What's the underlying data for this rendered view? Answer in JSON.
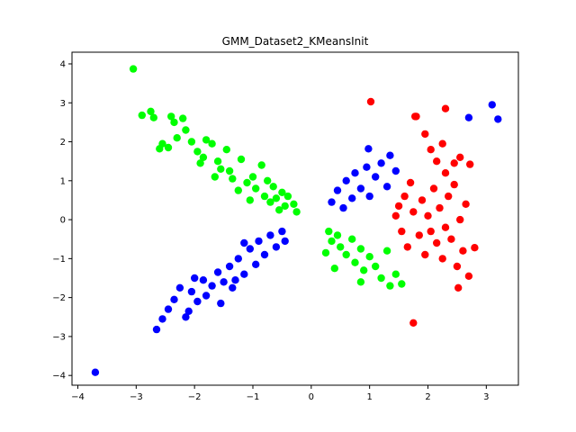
{
  "chart_data": {
    "type": "scatter",
    "title": "GMM_Dataset2_KMeansInit",
    "xlabel": "",
    "ylabel": "",
    "xlim": [
      -4.1,
      3.55
    ],
    "ylim": [
      -4.25,
      4.3
    ],
    "xticks": [
      -4,
      -3,
      -2,
      -1,
      0,
      1,
      2,
      3
    ],
    "yticks": [
      -4,
      -3,
      -2,
      -1,
      0,
      1,
      2,
      3,
      4
    ],
    "grid": false,
    "legend": "none",
    "colors": {
      "cluster_a": "#00ff00",
      "cluster_b": "#0000ff",
      "cluster_c": "#ff0000"
    },
    "series": [
      {
        "color_key": "cluster_a",
        "points": [
          [
            -3.05,
            3.87
          ],
          [
            -2.9,
            2.68
          ],
          [
            -2.75,
            2.78
          ],
          [
            -2.7,
            2.62
          ],
          [
            -2.55,
            1.95
          ],
          [
            -2.6,
            1.82
          ],
          [
            -2.4,
            2.65
          ],
          [
            -2.35,
            2.5
          ],
          [
            -2.3,
            2.1
          ],
          [
            -2.2,
            2.6
          ],
          [
            -2.15,
            2.3
          ],
          [
            -2.05,
            2.0
          ],
          [
            -1.95,
            1.75
          ],
          [
            -1.85,
            1.6
          ],
          [
            -1.8,
            2.05
          ],
          [
            -1.7,
            1.95
          ],
          [
            -1.6,
            1.5
          ],
          [
            -1.55,
            1.3
          ],
          [
            -1.45,
            1.8
          ],
          [
            -1.4,
            1.25
          ],
          [
            -1.35,
            1.05
          ],
          [
            -1.2,
            1.55
          ],
          [
            -1.1,
            0.95
          ],
          [
            -1.0,
            1.1
          ],
          [
            -0.95,
            0.8
          ],
          [
            -0.85,
            1.4
          ],
          [
            -0.8,
            0.6
          ],
          [
            -0.75,
            1.0
          ],
          [
            -0.7,
            0.45
          ],
          [
            -0.65,
            0.85
          ],
          [
            -0.6,
            0.55
          ],
          [
            -0.5,
            0.7
          ],
          [
            -0.45,
            0.35
          ],
          [
            -0.4,
            0.6
          ],
          [
            -0.3,
            0.4
          ],
          [
            -0.25,
            0.2
          ],
          [
            0.3,
            -0.3
          ],
          [
            0.35,
            -0.55
          ],
          [
            0.45,
            -0.4
          ],
          [
            0.5,
            -0.7
          ],
          [
            0.6,
            -0.9
          ],
          [
            0.7,
            -0.5
          ],
          [
            0.75,
            -1.1
          ],
          [
            0.85,
            -0.75
          ],
          [
            0.9,
            -1.3
          ],
          [
            1.0,
            -0.95
          ],
          [
            1.1,
            -1.2
          ],
          [
            1.2,
            -1.5
          ],
          [
            1.3,
            -0.8
          ],
          [
            1.35,
            -1.7
          ],
          [
            1.45,
            -1.4
          ],
          [
            1.55,
            -1.65
          ],
          [
            0.25,
            -0.85
          ],
          [
            0.4,
            -1.25
          ],
          [
            0.85,
            -1.6
          ],
          [
            -1.9,
            1.45
          ],
          [
            -1.25,
            0.75
          ],
          [
            -2.45,
            1.85
          ],
          [
            -1.65,
            1.1
          ],
          [
            -1.05,
            0.5
          ],
          [
            -0.55,
            0.25
          ]
        ]
      },
      {
        "color_key": "cluster_b",
        "points": [
          [
            -3.7,
            -3.92
          ],
          [
            -2.65,
            -2.82
          ],
          [
            -2.55,
            -2.55
          ],
          [
            -2.45,
            -2.3
          ],
          [
            -2.35,
            -2.05
          ],
          [
            -2.25,
            -1.75
          ],
          [
            -2.15,
            -2.5
          ],
          [
            -2.1,
            -2.35
          ],
          [
            -2.05,
            -1.85
          ],
          [
            -1.95,
            -2.1
          ],
          [
            -1.85,
            -1.55
          ],
          [
            -1.8,
            -1.95
          ],
          [
            -1.7,
            -1.7
          ],
          [
            -1.6,
            -1.35
          ],
          [
            -1.55,
            -2.15
          ],
          [
            -1.5,
            -1.6
          ],
          [
            -1.4,
            -1.2
          ],
          [
            -1.35,
            -1.75
          ],
          [
            -1.25,
            -1.0
          ],
          [
            -1.15,
            -1.4
          ],
          [
            -1.05,
            -0.75
          ],
          [
            -0.95,
            -1.15
          ],
          [
            -0.9,
            -0.55
          ],
          [
            -0.8,
            -0.9
          ],
          [
            -0.7,
            -0.4
          ],
          [
            -0.6,
            -0.7
          ],
          [
            -0.5,
            -0.3
          ],
          [
            -0.45,
            -0.55
          ],
          [
            0.35,
            0.45
          ],
          [
            0.45,
            0.75
          ],
          [
            0.55,
            0.3
          ],
          [
            0.6,
            1.0
          ],
          [
            0.7,
            0.55
          ],
          [
            0.75,
            1.2
          ],
          [
            0.85,
            0.8
          ],
          [
            0.95,
            1.35
          ],
          [
            1.0,
            0.6
          ],
          [
            1.1,
            1.1
          ],
          [
            1.2,
            1.45
          ],
          [
            1.3,
            0.85
          ],
          [
            1.35,
            1.65
          ],
          [
            1.45,
            1.25
          ],
          [
            0.98,
            1.82
          ],
          [
            -1.3,
            -1.55
          ],
          [
            -2.0,
            -1.5
          ],
          [
            -1.15,
            -0.6
          ],
          [
            2.7,
            2.62
          ],
          [
            3.1,
            2.95
          ],
          [
            3.2,
            2.58
          ]
        ]
      },
      {
        "color_key": "cluster_c",
        "points": [
          [
            1.02,
            3.03
          ],
          [
            1.8,
            2.65
          ],
          [
            1.95,
            2.2
          ],
          [
            2.05,
            1.8
          ],
          [
            2.15,
            1.5
          ],
          [
            2.25,
            1.95
          ],
          [
            2.3,
            1.2
          ],
          [
            2.45,
            1.45
          ],
          [
            2.55,
            1.6
          ],
          [
            2.72,
            1.42
          ],
          [
            1.6,
            0.6
          ],
          [
            1.7,
            0.95
          ],
          [
            1.75,
            0.2
          ],
          [
            1.85,
            -0.4
          ],
          [
            1.9,
            0.5
          ],
          [
            1.95,
            -0.9
          ],
          [
            2.0,
            0.1
          ],
          [
            2.05,
            -0.3
          ],
          [
            2.1,
            0.8
          ],
          [
            2.15,
            -0.6
          ],
          [
            2.2,
            0.3
          ],
          [
            2.25,
            -1.0
          ],
          [
            2.3,
            -0.2
          ],
          [
            2.35,
            0.6
          ],
          [
            2.4,
            -0.5
          ],
          [
            2.45,
            0.9
          ],
          [
            2.5,
            -1.2
          ],
          [
            2.55,
            0.0
          ],
          [
            2.6,
            -0.8
          ],
          [
            2.65,
            0.4
          ],
          [
            2.7,
            -1.45
          ],
          [
            2.8,
            -0.72
          ],
          [
            1.45,
            0.1
          ],
          [
            1.55,
            -0.3
          ],
          [
            1.65,
            -0.7
          ],
          [
            1.5,
            0.35
          ],
          [
            1.78,
            2.65
          ],
          [
            2.3,
            2.85
          ],
          [
            2.52,
            -1.75
          ],
          [
            1.75,
            -2.65
          ]
        ]
      }
    ]
  }
}
